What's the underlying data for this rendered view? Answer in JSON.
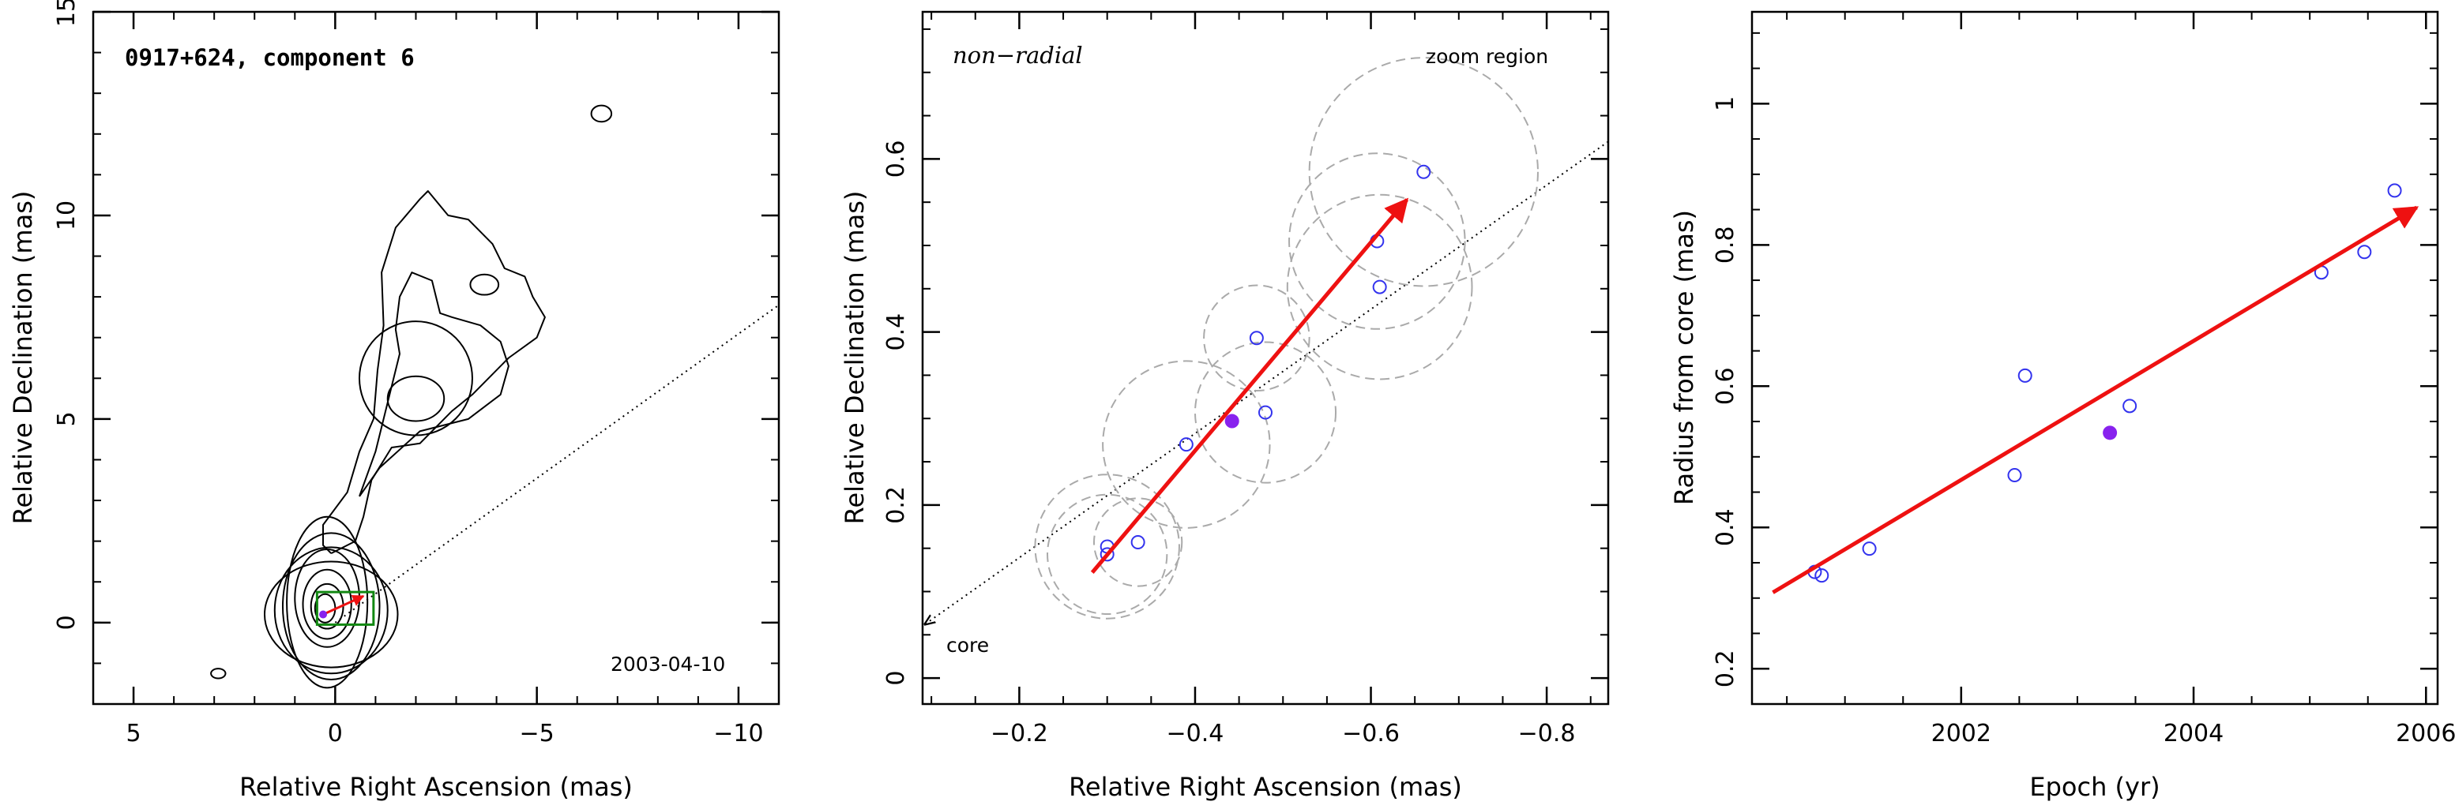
{
  "chart_data": [
    {
      "type": "contour",
      "title": "0917+624, component 6",
      "date_label": "2003-04-10",
      "xlabel": "Relative Right Ascension (mas)",
      "ylabel": "Relative Declination (mas)",
      "xlim": [
        6,
        -11
      ],
      "ylim": [
        -2,
        15
      ],
      "xticks": [
        5,
        0,
        -5,
        -10
      ],
      "yticks": [
        0,
        5,
        10,
        15
      ],
      "xtick_labels": [
        "5",
        "0",
        "−5",
        "−10"
      ],
      "ytick_labels": [
        "0",
        "5",
        "10",
        "15"
      ],
      "dotted_line": {
        "x": [
          0,
          -11
        ],
        "y": [
          0,
          7.8
        ]
      },
      "zoom_box": {
        "x": [
          0.45,
          -0.95
        ],
        "y": [
          -0.05,
          0.75
        ]
      },
      "core_peak": {
        "x": 0.3,
        "y": 0.2
      },
      "contours": [
        {
          "cx": 0.1,
          "cy": 0.2,
          "rx": 1.65,
          "ry": 1.3
        },
        {
          "cx": 0.1,
          "cy": 0.3,
          "rx": 1.4,
          "ry": 1.55
        },
        {
          "cx": 0.1,
          "cy": 0.4,
          "rx": 1.2,
          "ry": 1.8
        },
        {
          "cx": 0.2,
          "cy": 0.5,
          "rx": 1.0,
          "ry": 2.1
        },
        {
          "cx": 0.2,
          "cy": 0.6,
          "rx": 0.8,
          "ry": 1.2
        },
        {
          "cx": 0.2,
          "cy": 0.45,
          "rx": 0.6,
          "ry": 0.85
        },
        {
          "cx": 0.2,
          "cy": 0.4,
          "rx": 0.4,
          "ry": 0.55
        },
        {
          "cx": 0.25,
          "cy": 0.35,
          "rx": 0.25,
          "ry": 0.35
        },
        {
          "cx": -2.0,
          "cy": 5.5,
          "rx": 0.7,
          "ry": 0.55
        },
        {
          "cx": -2.0,
          "cy": 6.0,
          "rx": 1.4,
          "ry": 1.4
        },
        {
          "cx": -3.7,
          "cy": 8.3,
          "rx": 0.35,
          "ry": 0.25
        },
        {
          "cx": -6.6,
          "cy": 12.5,
          "rx": 0.25,
          "ry": 0.2
        },
        {
          "cx": 2.9,
          "cy": -1.25,
          "rx": 0.18,
          "ry": 0.12
        }
      ],
      "outer_contours": [
        {
          "x": [
            0.1,
            -0.5,
            -0.7,
            -0.9,
            -1.4,
            -2.1,
            -2.9,
            -3.4,
            -4.3,
            -5.0,
            -5.2,
            -4.9,
            -4.7,
            -4.2,
            -3.9,
            -3.3,
            -2.8,
            -2.3,
            -2.1,
            -1.5,
            -1.15,
            -1.2,
            -1.05,
            -0.95,
            -0.6,
            -0.3,
            0.3,
            0.3,
            0.1
          ],
          "y": [
            1.7,
            2.0,
            2.6,
            3.5,
            4.3,
            4.4,
            5.2,
            5.6,
            6.5,
            7.0,
            7.5,
            8.0,
            8.5,
            8.7,
            9.3,
            9.9,
            10.0,
            10.6,
            10.4,
            9.7,
            8.6,
            7.3,
            6.2,
            5.0,
            4.2,
            3.2,
            2.4,
            1.9,
            1.7
          ]
        },
        {
          "x": [
            -0.6,
            -1.1,
            -2.1,
            -3.3,
            -4.1,
            -4.3,
            -4.1,
            -3.6,
            -2.9,
            -2.6,
            -2.4,
            -1.9,
            -1.6,
            -1.5,
            -1.6,
            -1.3,
            -1.0,
            -0.6
          ],
          "y": [
            3.1,
            3.8,
            4.7,
            5.0,
            5.6,
            6.3,
            6.9,
            7.3,
            7.5,
            7.6,
            8.4,
            8.6,
            8.0,
            7.2,
            6.6,
            5.4,
            4.2,
            3.1
          ]
        }
      ]
    },
    {
      "type": "scatter",
      "annotation": "non−radial",
      "zoom_label": "zoom region",
      "core_label": "core",
      "xlabel": "Relative Right Ascension (mas)",
      "ylabel": "Relative Declination (mas)",
      "xlim": [
        -0.09,
        -0.87
      ],
      "ylim": [
        -0.03,
        0.77
      ],
      "xticks": [
        -0.2,
        -0.4,
        -0.6,
        -0.8
      ],
      "yticks": [
        0,
        0.2,
        0.4,
        0.6
      ],
      "xtick_labels": [
        "−0.2",
        "−0.4",
        "−0.6",
        "−0.8"
      ],
      "ytick_labels": [
        "0",
        "0.2",
        "0.4",
        "0.6"
      ],
      "points": [
        {
          "x": -0.3,
          "y": 0.152
        },
        {
          "x": -0.3,
          "y": 0.143
        },
        {
          "x": -0.335,
          "y": 0.157
        },
        {
          "x": -0.39,
          "y": 0.27
        },
        {
          "x": -0.47,
          "y": 0.393
        },
        {
          "x": -0.48,
          "y": 0.307
        },
        {
          "x": -0.607,
          "y": 0.505
        },
        {
          "x": -0.61,
          "y": 0.452
        },
        {
          "x": -0.66,
          "y": 0.585
        }
      ],
      "highlight_point": {
        "x": -0.442,
        "y": 0.297
      },
      "uncertainty_circles": [
        {
          "x": -0.3,
          "y": 0.152,
          "r": 0.082
        },
        {
          "x": -0.3,
          "y": 0.143,
          "r": 0.068
        },
        {
          "x": -0.335,
          "y": 0.157,
          "r": 0.05
        },
        {
          "x": -0.39,
          "y": 0.27,
          "r": 0.095
        },
        {
          "x": -0.47,
          "y": 0.393,
          "r": 0.06
        },
        {
          "x": -0.48,
          "y": 0.307,
          "r": 0.08
        },
        {
          "x": -0.607,
          "y": 0.505,
          "r": 0.1
        },
        {
          "x": -0.61,
          "y": 0.452,
          "r": 0.105
        },
        {
          "x": -0.66,
          "y": 0.585,
          "r": 0.13
        }
      ],
      "trend_arrow": {
        "x": [
          -0.283,
          -0.641
        ],
        "y": [
          0.122,
          0.553
        ]
      },
      "dotted_line": {
        "x": [
          -0.09,
          -0.87
        ],
        "y": [
          0.064,
          0.62
        ]
      }
    },
    {
      "type": "scatter",
      "xlabel": "Epoch (yr)",
      "ylabel": "Radius from core (mas)",
      "xlim": [
        2000.2,
        2006.1
      ],
      "ylim": [
        0.15,
        1.13
      ],
      "xticks": [
        2002,
        2004,
        2006
      ],
      "yticks": [
        0.2,
        0.4,
        0.6,
        0.8,
        1
      ],
      "xtick_labels": [
        "2002",
        "2004",
        "2006"
      ],
      "ytick_labels": [
        "0.2",
        "0.4",
        "0.6",
        "0.8",
        "1"
      ],
      "points": [
        {
          "x": 2000.74,
          "y": 0.337
        },
        {
          "x": 2000.8,
          "y": 0.332
        },
        {
          "x": 2001.21,
          "y": 0.37
        },
        {
          "x": 2002.46,
          "y": 0.474
        },
        {
          "x": 2002.55,
          "y": 0.615
        },
        {
          "x": 2003.45,
          "y": 0.572
        },
        {
          "x": 2005.1,
          "y": 0.761
        },
        {
          "x": 2005.47,
          "y": 0.79
        },
        {
          "x": 2005.73,
          "y": 0.877
        }
      ],
      "highlight_point": {
        "x": 2003.28,
        "y": 0.534
      },
      "trend_arrow": {
        "x": [
          2000.38,
          2005.92
        ],
        "y": [
          0.308,
          0.853
        ]
      }
    }
  ],
  "colors": {
    "point": "#3333ee",
    "highlight": "#8822ee",
    "arrow": "#ee1111",
    "circle": "#aaaaaa",
    "box": "#118811",
    "axis": "#000000"
  }
}
